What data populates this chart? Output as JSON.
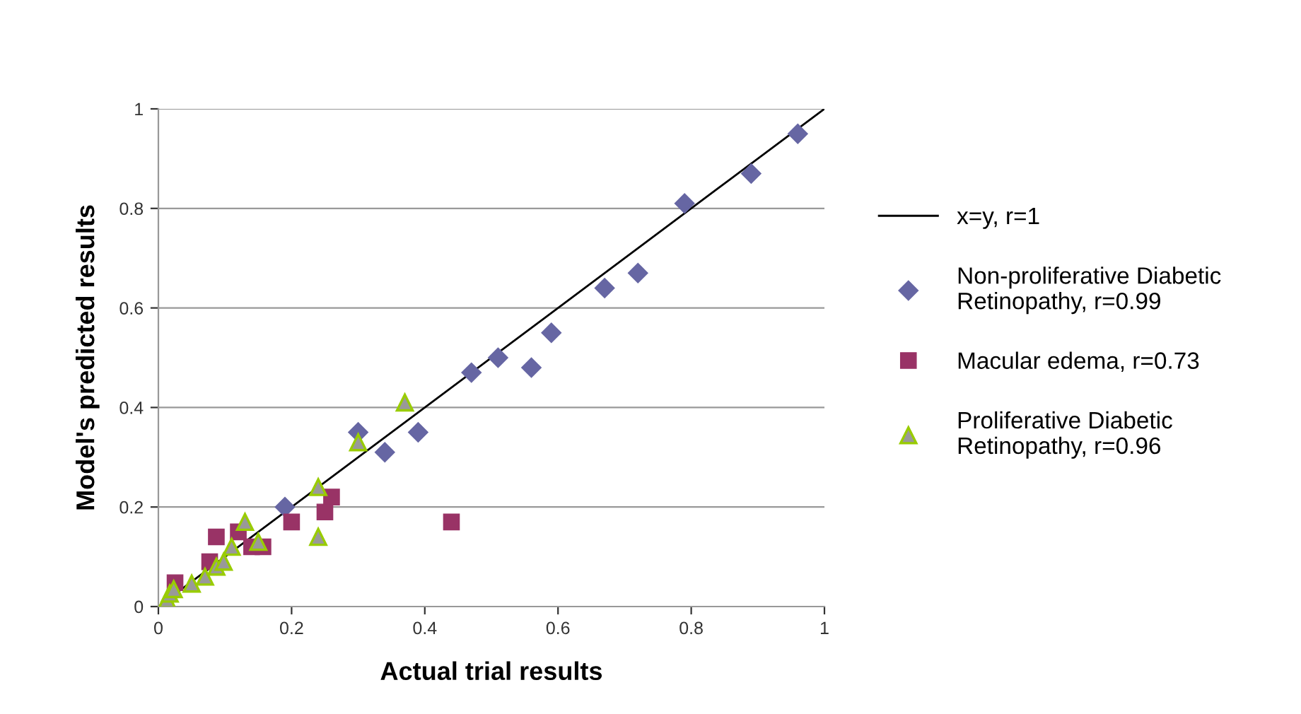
{
  "chart_data": {
    "type": "scatter",
    "xlabel": "Actual trial results",
    "ylabel": "Model's predicted results",
    "xlim": [
      0,
      1
    ],
    "ylim": [
      0,
      1
    ],
    "xticks": [
      0,
      0.2,
      0.4,
      0.6,
      0.8,
      1
    ],
    "yticks": [
      0,
      0.2,
      0.4,
      0.6,
      0.8,
      1
    ],
    "grid": "y",
    "legend": "right",
    "series": [
      {
        "name": "x=y, r=1",
        "type": "line",
        "color": "#000000",
        "x": [
          0,
          1
        ],
        "values": [
          0,
          1
        ],
        "marker": "none",
        "line_style": "solid"
      },
      {
        "name": "Non-proliferative Diabetic Retinopathy, r=0.99",
        "color": "#6666a3",
        "marker": "diamond",
        "x": [
          0.19,
          0.3,
          0.34,
          0.39,
          0.47,
          0.51,
          0.56,
          0.59,
          0.67,
          0.72,
          0.79,
          0.89,
          0.96
        ],
        "values": [
          0.2,
          0.35,
          0.31,
          0.35,
          0.47,
          0.5,
          0.48,
          0.55,
          0.64,
          0.67,
          0.81,
          0.87,
          0.95
        ]
      },
      {
        "name": "Macular edema, r=0.73",
        "color": "#993366",
        "marker": "square",
        "x": [
          0.025,
          0.077,
          0.087,
          0.12,
          0.14,
          0.157,
          0.2,
          0.25,
          0.26,
          0.44
        ],
        "values": [
          0.048,
          0.09,
          0.14,
          0.15,
          0.12,
          0.12,
          0.17,
          0.19,
          0.22,
          0.17
        ]
      },
      {
        "name": "Proliferative Diabetic Retinopathy, r=0.96",
        "color": "#999999",
        "marker": "triangle",
        "x": [
          0.013,
          0.017,
          0.023,
          0.05,
          0.07,
          0.087,
          0.098,
          0.11,
          0.13,
          0.15,
          0.24,
          0.24,
          0.3,
          0.37
        ],
        "values": [
          0.014,
          0.026,
          0.035,
          0.046,
          0.06,
          0.08,
          0.09,
          0.12,
          0.17,
          0.13,
          0.24,
          0.14,
          0.33,
          0.41
        ]
      }
    ]
  }
}
